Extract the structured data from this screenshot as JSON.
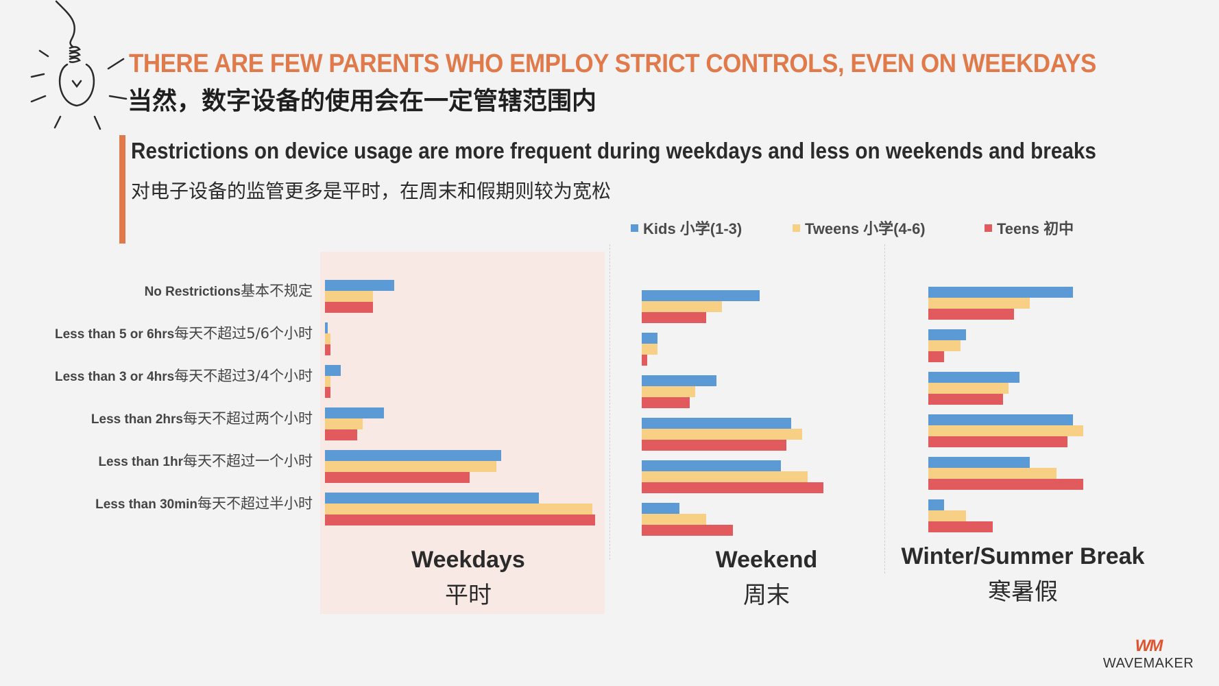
{
  "header": {
    "title_en": "THERE ARE FEW PARENTS WHO EMPLOY STRICT CONTROLS, EVEN ON WEEKDAYS",
    "title_zh": "当然，数字设备的使用会在一定管辖范围内",
    "subtitle_en": "Restrictions on device usage are more frequent during weekdays and less on weekends and breaks",
    "subtitle_zh": "对电子设备的监管更多是平时，在周末和假期则较为宽松"
  },
  "colors": {
    "accent": "#e07a4a",
    "kids": "#5b9ad5",
    "tweens": "#f7d085",
    "teens": "#e15a5e",
    "weekday_bg": "#f9e9e5"
  },
  "chart_data": [
    {
      "type": "bar",
      "orientation": "horizontal",
      "panel": "Weekdays",
      "title": "Weekdays",
      "title_zh": "平时",
      "categories": [
        "No Restrictions基本不规定",
        "Less than 5 or 6hrs每天不超过5/6个小时",
        "Less than 3 or 4hrs每天不超过3/4个小时",
        "Less than 2hrs每天不超过两个小时",
        "Less than 1hr每天不超过一个小时",
        "Less than 30min每天不超过半小时"
      ],
      "series": [
        {
          "name": "Kids 小学(1-3)",
          "values": [
            13,
            0.5,
            3,
            11,
            33,
            40
          ]
        },
        {
          "name": "Tweens 小学(4-6)",
          "values": [
            9,
            1,
            1,
            7,
            32,
            50
          ]
        },
        {
          "name": "Teens 初中",
          "values": [
            9,
            1,
            1,
            6,
            27,
            50.5
          ]
        }
      ],
      "xlim": [
        0,
        52
      ]
    },
    {
      "type": "bar",
      "orientation": "horizontal",
      "panel": "Weekend",
      "title": "Weekend",
      "title_zh": "周末",
      "categories": [
        "No Restrictions基本不规定",
        "Less than 5 or 6hrs每天不超过5/6个小时",
        "Less than 3 or 4hrs每天不超过3/4个小时",
        "Less than 2hrs每天不超过两个小时",
        "Less than 1hr每天不超过一个小时",
        "Less than 30min每天不超过半小时"
      ],
      "series": [
        {
          "name": "Kids 小学(1-3)",
          "values": [
            22,
            3,
            14,
            28,
            26,
            7
          ]
        },
        {
          "name": "Tweens 小学(4-6)",
          "values": [
            15,
            3,
            10,
            30,
            31,
            12
          ]
        },
        {
          "name": "Teens 初中",
          "values": [
            12,
            1,
            9,
            27,
            34,
            17
          ]
        }
      ],
      "xlim": [
        0,
        52
      ]
    },
    {
      "type": "bar",
      "orientation": "horizontal",
      "panel": "Winter/Summer Break",
      "title": "Winter/Summer Break",
      "title_zh": "寒暑假",
      "categories": [
        "No Restrictions基本不规定",
        "Less than 5 or 6hrs每天不超过5/6个小时",
        "Less than 3 or 4hrs每天不超过3/4个小时",
        "Less than 2hrs每天不超过两个小时",
        "Less than 1hr每天不超过一个小时",
        "Less than 30min每天不超过半小时"
      ],
      "series": [
        {
          "name": "Kids 小学(1-3)",
          "values": [
            27,
            7,
            17,
            27,
            19,
            3
          ]
        },
        {
          "name": "Tweens 小学(4-6)",
          "values": [
            19,
            6,
            15,
            29,
            24,
            7
          ]
        },
        {
          "name": "Teens 初中",
          "values": [
            16,
            3,
            14,
            26,
            29,
            12
          ]
        }
      ],
      "xlim": [
        0,
        52
      ]
    }
  ],
  "legend": [
    {
      "label": "Kids 小学(1-3)",
      "color": "#5b9ad5"
    },
    {
      "label": "Tweens 小学(4-6)",
      "color": "#f7d085"
    },
    {
      "label": "Teens 初中",
      "color": "#e15a5e"
    }
  ],
  "logo": {
    "mark": "WM",
    "text": "WAVEMAKER"
  }
}
